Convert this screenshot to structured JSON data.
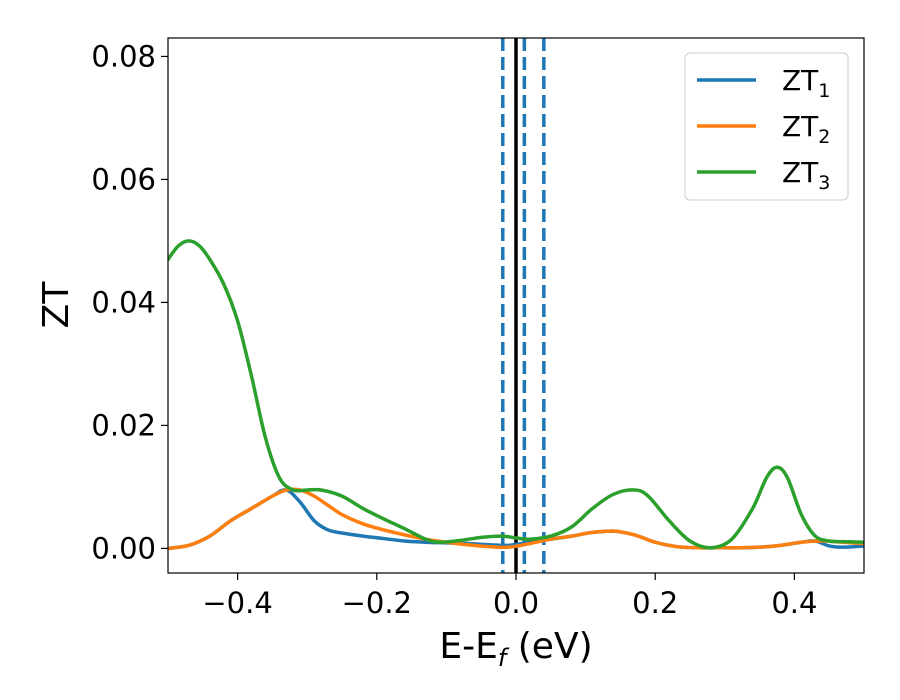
{
  "chart_data": {
    "type": "line",
    "xlabel": "E-E",
    "xlabel_sub": "f",
    "xlabel_unit": " (eV)",
    "ylabel": "ZT",
    "xlim": [
      -0.5,
      0.5
    ],
    "ylim": [
      -0.004,
      0.083
    ],
    "xticks": [
      -0.4,
      -0.2,
      0.0,
      0.2,
      0.4
    ],
    "xtick_labels": [
      "−0.4",
      "−0.2",
      "0.0",
      "0.2",
      "0.4"
    ],
    "yticks": [
      0.0,
      0.02,
      0.04,
      0.06,
      0.08
    ],
    "ytick_labels": [
      "0.00",
      "0.02",
      "0.04",
      "0.06",
      "0.08"
    ],
    "grid": false,
    "legend_position": "top-right",
    "vertical_lines": [
      {
        "x": -0.019,
        "style": "dashed",
        "color": "#1f77b4"
      },
      {
        "x": 0.0,
        "style": "solid",
        "color": "#000000"
      },
      {
        "x": 0.012,
        "style": "dashed",
        "color": "#1f77b4"
      },
      {
        "x": 0.04,
        "style": "dashed",
        "color": "#1f77b4"
      }
    ],
    "series": [
      {
        "name": "ZT",
        "name_sub": "1",
        "color": "#1f77b4",
        "x": [
          -0.5,
          -0.47,
          -0.44,
          -0.41,
          -0.38,
          -0.35,
          -0.33,
          -0.31,
          -0.29,
          -0.27,
          -0.25,
          -0.22,
          -0.19,
          -0.16,
          -0.13,
          -0.1,
          -0.07,
          -0.04,
          -0.01,
          0.02,
          0.05,
          0.08,
          0.11,
          0.14,
          0.17,
          0.2,
          0.23,
          0.26,
          0.29,
          0.32,
          0.35,
          0.38,
          0.41,
          0.43,
          0.45,
          0.47,
          0.5
        ],
        "y": [
          0.0,
          0.0005,
          0.002,
          0.0045,
          0.0065,
          0.0085,
          0.0095,
          0.0075,
          0.0045,
          0.003,
          0.0025,
          0.002,
          0.0016,
          0.0012,
          0.001,
          0.0009,
          0.0008,
          0.0006,
          0.0005,
          0.001,
          0.0015,
          0.002,
          0.0026,
          0.0028,
          0.0022,
          0.001,
          0.0003,
          0.0001,
          0.0001,
          0.0001,
          0.0002,
          0.0005,
          0.001,
          0.0012,
          0.0004,
          0.0002,
          0.0004
        ]
      },
      {
        "name": "ZT",
        "name_sub": "2",
        "color": "#ff7f0e",
        "x": [
          -0.5,
          -0.47,
          -0.44,
          -0.41,
          -0.38,
          -0.35,
          -0.33,
          -0.31,
          -0.29,
          -0.27,
          -0.25,
          -0.22,
          -0.19,
          -0.16,
          -0.13,
          -0.1,
          -0.07,
          -0.04,
          -0.01,
          0.02,
          0.05,
          0.08,
          0.11,
          0.14,
          0.17,
          0.2,
          0.23,
          0.26,
          0.29,
          0.32,
          0.35,
          0.38,
          0.41,
          0.44,
          0.47,
          0.5
        ],
        "y": [
          0.0,
          0.0005,
          0.002,
          0.0045,
          0.0065,
          0.0085,
          0.0095,
          0.0095,
          0.0085,
          0.007,
          0.0055,
          0.004,
          0.003,
          0.0022,
          0.0015,
          0.001,
          0.0006,
          0.0003,
          0.0002,
          0.0008,
          0.0015,
          0.002,
          0.0026,
          0.0028,
          0.0022,
          0.001,
          0.0003,
          0.0001,
          0.0001,
          0.0001,
          0.0002,
          0.0005,
          0.001,
          0.0012,
          0.001,
          0.0008
        ]
      },
      {
        "name": "ZT",
        "name_sub": "3",
        "color": "#2ca02c",
        "x": [
          -0.5,
          -0.485,
          -0.47,
          -0.455,
          -0.44,
          -0.42,
          -0.4,
          -0.38,
          -0.36,
          -0.34,
          -0.32,
          -0.3,
          -0.28,
          -0.25,
          -0.22,
          -0.19,
          -0.16,
          -0.13,
          -0.11,
          -0.08,
          -0.05,
          -0.02,
          0.0,
          0.02,
          0.05,
          0.08,
          0.11,
          0.14,
          0.17,
          0.19,
          0.22,
          0.25,
          0.28,
          0.31,
          0.34,
          0.36,
          0.375,
          0.39,
          0.41,
          0.43,
          0.45,
          0.47,
          0.5
        ],
        "y": [
          0.047,
          0.0492,
          0.05,
          0.0492,
          0.047,
          0.043,
          0.037,
          0.028,
          0.018,
          0.0115,
          0.0095,
          0.0095,
          0.0095,
          0.0085,
          0.0065,
          0.0048,
          0.0032,
          0.0015,
          0.001,
          0.0013,
          0.0018,
          0.002,
          0.0017,
          0.0015,
          0.002,
          0.0035,
          0.0065,
          0.0088,
          0.0095,
          0.0085,
          0.0045,
          0.0012,
          0.0001,
          0.0015,
          0.0065,
          0.0115,
          0.0132,
          0.0115,
          0.0055,
          0.002,
          0.0012,
          0.0011,
          0.001
        ]
      }
    ]
  }
}
